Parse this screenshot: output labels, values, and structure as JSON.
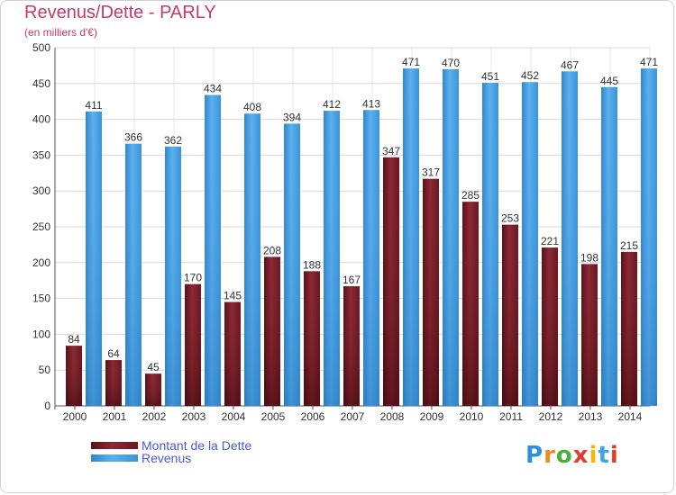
{
  "chart_data": {
    "type": "bar",
    "title": "Revenus/Dette - PARLY",
    "subtitle": "(en milliers d'€)",
    "categories": [
      "2000",
      "2001",
      "2002",
      "2003",
      "2004",
      "2005",
      "2006",
      "2007",
      "2008",
      "2009",
      "2010",
      "2011",
      "2012",
      "2013",
      "2014"
    ],
    "series": [
      {
        "name": "Montant de la Dette",
        "color": "#7b1f28",
        "values": [
          84,
          64,
          45,
          170,
          145,
          208,
          188,
          167,
          347,
          317,
          285,
          253,
          221,
          198,
          215
        ]
      },
      {
        "name": "Revenus",
        "color": "#4da3e6",
        "values": [
          411,
          366,
          362,
          434,
          408,
          394,
          412,
          413,
          471,
          470,
          451,
          452,
          467,
          445,
          471
        ]
      }
    ],
    "ylim": [
      0,
      500
    ],
    "yticks": [
      0,
      50,
      100,
      150,
      200,
      250,
      300,
      350,
      400,
      450,
      500
    ],
    "grid": true,
    "legend_position": "bottom-left"
  },
  "logo": {
    "text": "Proxiti"
  }
}
